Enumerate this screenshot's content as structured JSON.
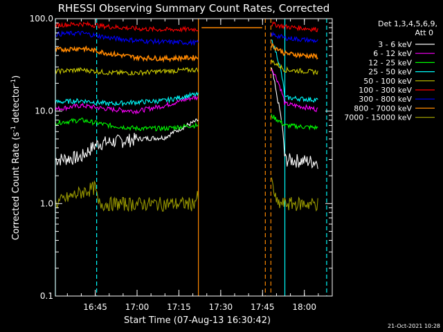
{
  "chart_data": {
    "type": "line",
    "title": "RHESSI Observing Summary Count Rates, Corrected",
    "xlabel": "Start Time (07-Aug-13 16:30:42)",
    "ylabel_main": "Corrected Count Rate (s",
    "ylabel_sup1": "-1",
    "ylabel_mid": " detector",
    "ylabel_sup2": "-1",
    "ylabel_end": ")",
    "y_scale": "log",
    "ylim": [
      0.1,
      100
    ],
    "xlim": [
      "16:30:42",
      "18:10"
    ],
    "x_ticks": [
      "16:45",
      "17:00",
      "17:15",
      "17:30",
      "17:45",
      "18:00"
    ],
    "y_ticks": [
      "0.1",
      "1.0",
      "10.0",
      "100.0"
    ],
    "legend_header": [
      "Det 1,3,4,5,6,9,",
      "Att 0"
    ],
    "legend_position": "right",
    "timestamp": "21-Oct-2021 10:28",
    "flag_vlines": [
      {
        "time": "16:30:42",
        "color": "#00ffff",
        "style": "solid"
      },
      {
        "time": "16:45:30",
        "color": "#00ffff",
        "style": "dashed"
      },
      {
        "time": "17:22:00",
        "color": "#ff8800",
        "style": "solid"
      },
      {
        "time": "17:46:00",
        "color": "#ff8800",
        "style": "dashed"
      },
      {
        "time": "17:48:00",
        "color": "#ff8800",
        "style": "dashed"
      },
      {
        "time": "17:53:00",
        "color": "#00ffff",
        "style": "solid"
      },
      {
        "time": "18:08:00",
        "color": "#00ffff",
        "style": "dashed"
      }
    ],
    "series": [
      {
        "name": "3 - 6 keV",
        "color": "#ffffff",
        "points": [
          [
            "16:30:42",
            3.0
          ],
          [
            "16:40",
            3.2
          ],
          [
            "16:46",
            4.5
          ],
          [
            "17:00",
            5.0
          ],
          [
            "17:10",
            5.2
          ],
          [
            "17:20",
            7.5
          ],
          [
            "17:22",
            8.0
          ],
          [
            "17:48",
            30
          ],
          [
            "17:50",
            15
          ],
          [
            "17:53",
            3.0
          ],
          [
            "18:08",
            2.8
          ]
        ]
      },
      {
        "name": "6 - 12 keV",
        "color": "#ff00ff",
        "points": [
          [
            "16:30:42",
            10.5
          ],
          [
            "16:40",
            11.5
          ],
          [
            "16:50",
            10.5
          ],
          [
            "17:00",
            10.0
          ],
          [
            "17:10",
            11.5
          ],
          [
            "17:20",
            14
          ],
          [
            "17:22",
            14
          ],
          [
            "17:48",
            30
          ],
          [
            "17:53",
            12
          ],
          [
            "18:08",
            10
          ]
        ]
      },
      {
        "name": "12 - 25 keV",
        "color": "#00ff00",
        "points": [
          [
            "16:30:42",
            7.5
          ],
          [
            "16:40",
            8.0
          ],
          [
            "16:50",
            7.0
          ],
          [
            "17:00",
            6.5
          ],
          [
            "17:10",
            6.5
          ],
          [
            "17:20",
            7.0
          ],
          [
            "17:22",
            7.0
          ],
          [
            "17:48",
            9
          ],
          [
            "17:53",
            7
          ],
          [
            "18:08",
            6.5
          ]
        ]
      },
      {
        "name": "25 - 50 keV",
        "color": "#00ffff",
        "points": [
          [
            "16:30:42",
            12.5
          ],
          [
            "16:40",
            13.0
          ],
          [
            "16:50",
            12.0
          ],
          [
            "17:00",
            12.5
          ],
          [
            "17:10",
            13.0
          ],
          [
            "17:20",
            15
          ],
          [
            "17:22",
            15
          ],
          [
            "17:48",
            60
          ],
          [
            "17:53",
            14
          ],
          [
            "18:08",
            13
          ]
        ]
      },
      {
        "name": "50 - 100 keV",
        "color": "#cccc00",
        "points": [
          [
            "16:30:42",
            27
          ],
          [
            "16:40",
            28
          ],
          [
            "16:50",
            26
          ],
          [
            "17:00",
            26
          ],
          [
            "17:10",
            27
          ],
          [
            "17:20",
            28
          ],
          [
            "17:22",
            28
          ],
          [
            "17:48",
            35
          ],
          [
            "17:53",
            28
          ],
          [
            "18:08",
            26
          ]
        ]
      },
      {
        "name": "100 - 300 keV",
        "color": "#ff0000",
        "points": [
          [
            "16:30:42",
            85
          ],
          [
            "16:40",
            88
          ],
          [
            "16:50",
            82
          ],
          [
            "17:00",
            78
          ],
          [
            "17:10",
            76
          ],
          [
            "17:20",
            77
          ],
          [
            "17:22",
            77
          ],
          [
            "17:48",
            88
          ],
          [
            "17:53",
            82
          ],
          [
            "18:08",
            75
          ]
        ]
      },
      {
        "name": "300 - 800 keV",
        "color": "#0000ff",
        "points": [
          [
            "16:30:42",
            68
          ],
          [
            "16:40",
            70
          ],
          [
            "16:50",
            62
          ],
          [
            "17:00",
            58
          ],
          [
            "17:10",
            56
          ],
          [
            "17:20",
            55
          ],
          [
            "17:22",
            55
          ],
          [
            "17:48",
            68
          ],
          [
            "17:53",
            62
          ],
          [
            "18:08",
            56
          ]
        ]
      },
      {
        "name": "800 - 7000 keV",
        "color": "#ff8800",
        "points": [
          [
            "16:30:42",
            46
          ],
          [
            "16:40",
            48
          ],
          [
            "16:50",
            42
          ],
          [
            "17:00",
            38
          ],
          [
            "17:10",
            37
          ],
          [
            "17:20",
            38
          ],
          [
            "17:22",
            38
          ],
          [
            "17:23",
            80
          ],
          [
            "17:45",
            80
          ],
          [
            "17:48",
            52
          ],
          [
            "17:53",
            42
          ],
          [
            "18:08",
            38
          ]
        ]
      },
      {
        "name": "7000 - 15000 keV",
        "color": "#999900",
        "points": [
          [
            "16:30:42",
            1.0
          ],
          [
            "16:45",
            1.5
          ],
          [
            "16:46",
            1.0
          ],
          [
            "17:20",
            1.0
          ],
          [
            "17:22",
            1.2
          ],
          [
            "17:48",
            1.8
          ],
          [
            "17:50",
            1.0
          ],
          [
            "18:08",
            1.0
          ]
        ]
      }
    ]
  }
}
